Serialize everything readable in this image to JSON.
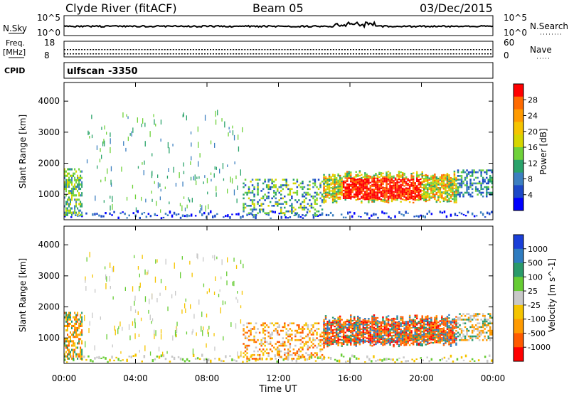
{
  "header": {
    "site": "Clyde River (fitACF)",
    "beam": "Beam 05",
    "date": "03/Dec/2015"
  },
  "noise_panel": {
    "left_label": "N.Sky",
    "right_label": "N.Search",
    "left_ticks": [
      "10^5",
      "10^0"
    ],
    "right_ticks": [
      "10^5",
      "10^0"
    ]
  },
  "freq_panel": {
    "left_label_line1": "Freq.",
    "left_label_line2": "[MHz]",
    "right_label": "Nave",
    "left_ticks": [
      "18",
      "8"
    ],
    "right_ticks": [
      "60",
      "0"
    ]
  },
  "cpid": {
    "label": "CPID",
    "program": "ulfscan",
    "id": "-3350"
  },
  "x_axis": {
    "label": "Time UT",
    "ticks": [
      "00:00",
      "04:00",
      "08:00",
      "12:00",
      "16:00",
      "20:00",
      "00:00"
    ]
  },
  "chart_data": [
    {
      "type": "heatmap",
      "name": "power",
      "ylabel": "Slant Range [km]",
      "x_range_hours": [
        0,
        24
      ],
      "ylim": [
        180,
        4600
      ],
      "y_ticks": [
        1000,
        2000,
        3000,
        4000
      ],
      "colorbar_label": "Power [dB]",
      "colorbar_ticks": [
        "28",
        "24",
        "20",
        "16",
        "12",
        "8",
        "4"
      ],
      "colorscale": [
        "#ff0000",
        "#ff6a00",
        "#ff9a00",
        "#f5c400",
        "#d6d600",
        "#6fd23a",
        "#2aa36a",
        "#3c7fc0",
        "#1c48c8",
        "#0000ff"
      ]
    },
    {
      "type": "heatmap",
      "name": "velocity",
      "ylabel": "Slant Range [km]",
      "x_range_hours": [
        0,
        24
      ],
      "ylim": [
        180,
        4600
      ],
      "y_ticks": [
        1000,
        2000,
        3000,
        4000
      ],
      "colorbar_label": "Velocity [m s^-1]",
      "colorbar_ticks": [
        "1000",
        "500",
        "100",
        "25",
        "-25",
        "-100",
        "-500",
        "-1000"
      ],
      "colorscale": [
        "#1a3fd8",
        "#2f7cc0",
        "#2a9a6a",
        "#66cc33",
        "#c8c8c8",
        "#f5c400",
        "#ff9a00",
        "#ff5a00",
        "#ff0000"
      ]
    }
  ]
}
